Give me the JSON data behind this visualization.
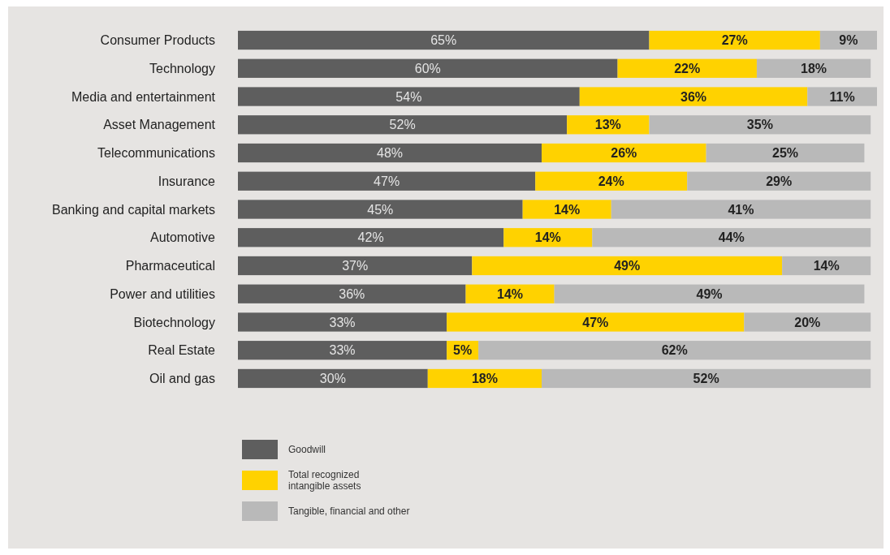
{
  "chart_data": {
    "type": "bar",
    "orientation": "horizontal",
    "stacked": true,
    "tick_labels": "y",
    "grid": false,
    "legend": "bottom left",
    "categories": [
      "Consumer Products",
      "Technology",
      "Media and entertainment",
      "Asset Management",
      "Telecommunications",
      "Insurance",
      "Banking and capital markets",
      "Automotive",
      "Pharmaceutical",
      "Power and utilities",
      "Biotechnology",
      "Real Estate",
      "Oil and gas"
    ],
    "series": [
      {
        "name": "Goodwill",
        "color": "#5e5e5e",
        "values": [
          65,
          60,
          54,
          52,
          48,
          47,
          45,
          42,
          37,
          36,
          33,
          33,
          30
        ],
        "value_labels": [
          "65%",
          "60%",
          "54%",
          "52%",
          "48%",
          "47%",
          "45%",
          "42%",
          "37%",
          "36%",
          "33%",
          "33%",
          "30%"
        ]
      },
      {
        "name": "Total recognized intangible assets",
        "color": "#ffd200",
        "values": [
          27,
          22,
          36,
          13,
          26,
          24,
          14,
          14,
          49,
          14,
          47,
          5,
          18
        ],
        "value_labels": [
          "27%",
          "22%",
          "36%",
          "13%",
          "26%",
          "24%",
          "14%",
          "14%",
          "49%",
          "14%",
          "47%",
          "5%",
          "18%"
        ]
      },
      {
        "name": "Tangible, financial and other",
        "color": "#b9b9b9",
        "values": [
          9,
          18,
          11,
          35,
          25,
          29,
          41,
          44,
          14,
          49,
          20,
          62,
          52
        ],
        "value_labels": [
          "9%",
          "18%",
          "11%",
          "35%",
          "25%",
          "29%",
          "41%",
          "44%",
          "14%",
          "49%",
          "20%",
          "62%",
          "52%"
        ]
      }
    ]
  }
}
